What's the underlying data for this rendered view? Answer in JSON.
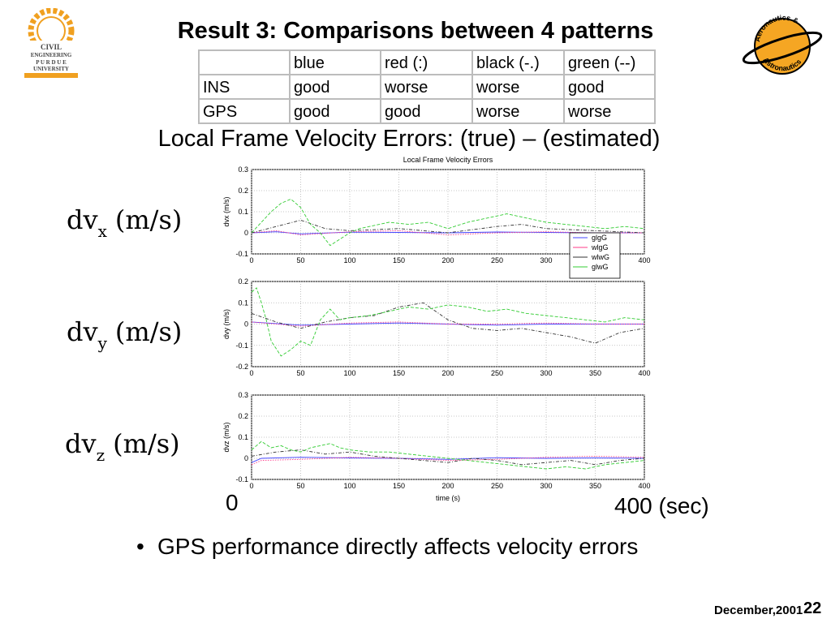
{
  "slide": {
    "title": "Result 3: Comparisons between 4 patterns",
    "subtitle": "Local Frame Velocity Errors: (true) – (estimated)",
    "axis_start": "0",
    "axis_end": "400 (sec)",
    "bullet": "GPS performance directly affects velocity errors",
    "footer_date": "December,2001",
    "page_number": "22"
  },
  "logos": {
    "left": {
      "line1": "CIVIL",
      "line2": "ENGINEERING",
      "line3": "P U R D U E",
      "line4": "UNIVERSITY"
    },
    "right": {
      "top_text": "Aeronautics &",
      "bottom_text": "Astronautics"
    }
  },
  "table": {
    "header": [
      "",
      "blue",
      "red (:)",
      "black (-.)",
      "green (--)"
    ],
    "rows": [
      [
        "INS",
        "good",
        "worse",
        "worse",
        "good"
      ],
      [
        "GPS",
        "good",
        "good",
        "worse",
        "worse"
      ]
    ]
  },
  "row_labels": [
    {
      "main": "dv",
      "sub": "x",
      "unit": "(m/s)"
    },
    {
      "main": "dv",
      "sub": "y",
      "unit": "(m/s)"
    },
    {
      "main": "dv",
      "sub": "z",
      "unit": "(m/s)"
    }
  ],
  "colors": {
    "blue": "#4444ff",
    "red": "#ff3b8a",
    "black": "#333333",
    "green": "#33cc33",
    "grid": "#b5b5b5"
  },
  "chart_data": [
    {
      "type": "line",
      "title": "Local Frame Velocity Errors",
      "xlabel": "",
      "ylabel": "dvx (m/s)",
      "xlim": [
        0,
        400
      ],
      "ylim": [
        -0.1,
        0.3
      ],
      "xticks": [
        0,
        50,
        100,
        150,
        200,
        250,
        300,
        350,
        400
      ],
      "yticks": [
        -0.1,
        0,
        0.1,
        0.2,
        0.3
      ],
      "grid": true,
      "legend": {
        "position": "bottom-right",
        "entries": [
          "glgG",
          "wlgG",
          "wlwG",
          "glwG"
        ]
      },
      "series": [
        {
          "name": "glgG",
          "color": "blue",
          "x": [
            0,
            25,
            50,
            100,
            150,
            200,
            250,
            300,
            350,
            400
          ],
          "y": [
            0,
            0.005,
            -0.005,
            0.003,
            0.002,
            0,
            0.004,
            0.002,
            0,
            0
          ]
        },
        {
          "name": "wlgG",
          "color": "red",
          "x": [
            0,
            25,
            50,
            100,
            150,
            200,
            250,
            300,
            350,
            400
          ],
          "y": [
            0,
            0.01,
            -0.01,
            0.005,
            0.01,
            -0.01,
            0,
            0.005,
            0,
            0
          ]
        },
        {
          "name": "wlwG",
          "color": "black",
          "x": [
            0,
            25,
            50,
            75,
            100,
            150,
            200,
            250,
            275,
            300,
            350,
            400
          ],
          "y": [
            0,
            0.03,
            0.06,
            0.02,
            0.01,
            0.02,
            0,
            0.03,
            0.04,
            0.02,
            0.01,
            0
          ]
        },
        {
          "name": "glwG",
          "color": "green",
          "x": [
            0,
            10,
            20,
            30,
            40,
            50,
            60,
            70,
            80,
            90,
            100,
            110,
            120,
            140,
            160,
            180,
            200,
            220,
            240,
            260,
            280,
            300,
            320,
            340,
            360,
            380,
            400
          ],
          "y": [
            0,
            0.05,
            0.1,
            0.14,
            0.16,
            0.12,
            0.04,
            0.0,
            -0.06,
            -0.03,
            0.0,
            0.02,
            0.03,
            0.05,
            0.04,
            0.05,
            0.02,
            0.05,
            0.07,
            0.09,
            0.07,
            0.05,
            0.04,
            0.03,
            0.02,
            0.03,
            0.02
          ]
        }
      ]
    },
    {
      "type": "line",
      "title": "",
      "xlabel": "",
      "ylabel": "dvy (m/s)",
      "xlim": [
        0,
        400
      ],
      "ylim": [
        -0.2,
        0.2
      ],
      "xticks": [
        0,
        50,
        100,
        150,
        200,
        250,
        300,
        350,
        400
      ],
      "yticks": [
        -0.2,
        -0.1,
        0,
        0.1,
        0.2
      ],
      "grid": true,
      "series": [
        {
          "name": "glgG",
          "color": "blue",
          "x": [
            0,
            50,
            100,
            150,
            200,
            250,
            300,
            350,
            400
          ],
          "y": [
            0.01,
            -0.005,
            0,
            0.005,
            0,
            -0.005,
            0,
            0,
            0
          ]
        },
        {
          "name": "wlgG",
          "color": "red",
          "x": [
            0,
            50,
            100,
            150,
            200,
            250,
            300,
            350,
            400
          ],
          "y": [
            0.01,
            -0.01,
            0.005,
            0.01,
            0,
            0,
            0.005,
            0,
            0
          ]
        },
        {
          "name": "wlwG",
          "color": "black",
          "x": [
            0,
            25,
            50,
            75,
            100,
            125,
            150,
            175,
            200,
            225,
            250,
            275,
            300,
            325,
            350,
            375,
            400
          ],
          "y": [
            0.05,
            0.01,
            -0.02,
            0.01,
            0.03,
            0.04,
            0.08,
            0.1,
            0.02,
            -0.02,
            -0.03,
            -0.02,
            -0.04,
            -0.06,
            -0.09,
            -0.04,
            -0.02
          ]
        },
        {
          "name": "glwG",
          "color": "green",
          "x": [
            0,
            5,
            10,
            15,
            20,
            30,
            40,
            50,
            60,
            70,
            80,
            90,
            100,
            120,
            140,
            160,
            180,
            200,
            220,
            240,
            260,
            280,
            300,
            320,
            340,
            360,
            380,
            400
          ],
          "y": [
            0.15,
            0.17,
            0.1,
            0.02,
            -0.08,
            -0.15,
            -0.12,
            -0.08,
            -0.1,
            0.02,
            0.07,
            0.02,
            0.03,
            0.04,
            0.06,
            0.08,
            0.07,
            0.09,
            0.08,
            0.06,
            0.07,
            0.05,
            0.04,
            0.03,
            0.02,
            0.01,
            0.03,
            0.02
          ]
        }
      ]
    },
    {
      "type": "line",
      "title": "",
      "xlabel": "time (s)",
      "ylabel": "dvz (m/s)",
      "xlim": [
        0,
        400
      ],
      "ylim": [
        -0.1,
        0.3
      ],
      "xticks": [
        0,
        50,
        100,
        150,
        200,
        250,
        300,
        350,
        400
      ],
      "yticks": [
        -0.1,
        0,
        0.1,
        0.2,
        0.3
      ],
      "grid": true,
      "series": [
        {
          "name": "glgG",
          "color": "blue",
          "x": [
            0,
            10,
            50,
            100,
            150,
            200,
            250,
            300,
            350,
            400
          ],
          "y": [
            -0.02,
            0,
            0.005,
            0.002,
            0,
            -0.005,
            0.003,
            0,
            0.002,
            0
          ]
        },
        {
          "name": "wlgG",
          "color": "red",
          "x": [
            0,
            10,
            50,
            100,
            150,
            200,
            250,
            300,
            350,
            400
          ],
          "y": [
            -0.03,
            -0.01,
            -0.005,
            0.005,
            0,
            -0.01,
            -0.005,
            0.005,
            0.01,
            0.005
          ]
        },
        {
          "name": "wlwG",
          "color": "black",
          "x": [
            0,
            25,
            50,
            75,
            100,
            125,
            150,
            175,
            200,
            225,
            250,
            275,
            300,
            325,
            350,
            375,
            400
          ],
          "y": [
            0.01,
            0.03,
            0.04,
            0.02,
            0.03,
            0.01,
            0.0,
            -0.01,
            -0.02,
            0.0,
            -0.01,
            -0.03,
            -0.02,
            -0.01,
            -0.03,
            -0.01,
            0.0
          ]
        },
        {
          "name": "glwG",
          "color": "green",
          "x": [
            0,
            10,
            20,
            30,
            40,
            50,
            60,
            70,
            80,
            90,
            100,
            120,
            140,
            160,
            180,
            200,
            220,
            240,
            260,
            280,
            300,
            320,
            340,
            360,
            380,
            400
          ],
          "y": [
            0.04,
            0.08,
            0.05,
            0.06,
            0.04,
            0.03,
            0.05,
            0.06,
            0.07,
            0.05,
            0.04,
            0.03,
            0.03,
            0.02,
            0.01,
            0.0,
            -0.01,
            -0.02,
            -0.03,
            -0.04,
            -0.05,
            -0.04,
            -0.05,
            -0.03,
            -0.02,
            -0.01
          ]
        }
      ]
    }
  ]
}
